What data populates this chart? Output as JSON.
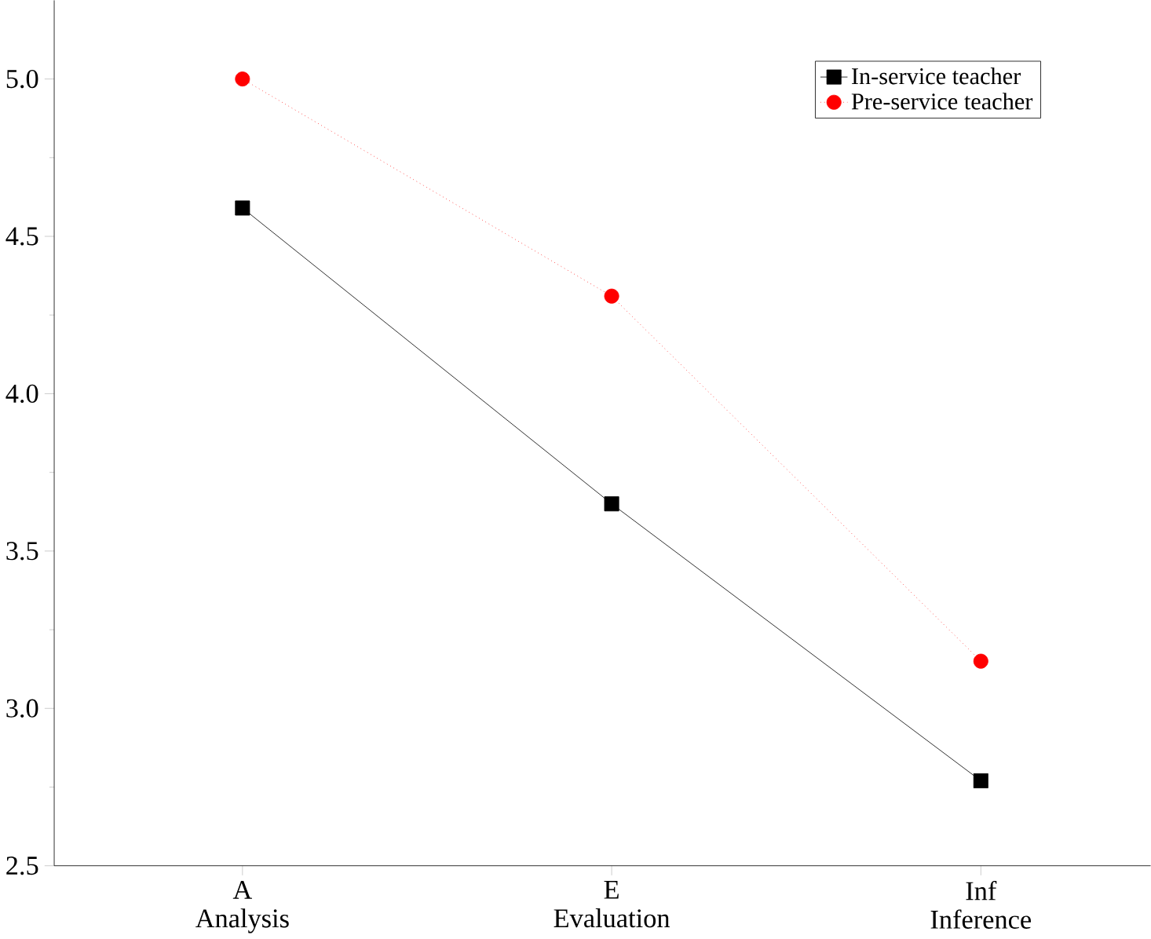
{
  "chart_data": {
    "type": "line",
    "categories": [
      "A\nAnalysis",
      "E\nEvaluation",
      "Inf\nInference"
    ],
    "ylim": [
      2.5,
      5.25
    ],
    "yticks": [
      {
        "value": 2.5,
        "label": "2.5"
      },
      {
        "value": 3.0,
        "label": "3.0"
      },
      {
        "value": 3.5,
        "label": "3.5"
      },
      {
        "value": 4.0,
        "label": "4.0"
      },
      {
        "value": 4.5,
        "label": "4.5"
      },
      {
        "value": 5.0,
        "label": "5.0"
      }
    ],
    "legend": "top right",
    "grid": false,
    "series": [
      {
        "name": "In-service teacher",
        "color": "#000000",
        "marker": "square",
        "line_style": "solid",
        "values": [
          4.59,
          3.65,
          2.77
        ]
      },
      {
        "name": "Pre-service teacher",
        "color": "#ff0000",
        "marker": "circle",
        "line_style": "dotted",
        "values": [
          5.0,
          4.31,
          3.15
        ]
      }
    ]
  }
}
